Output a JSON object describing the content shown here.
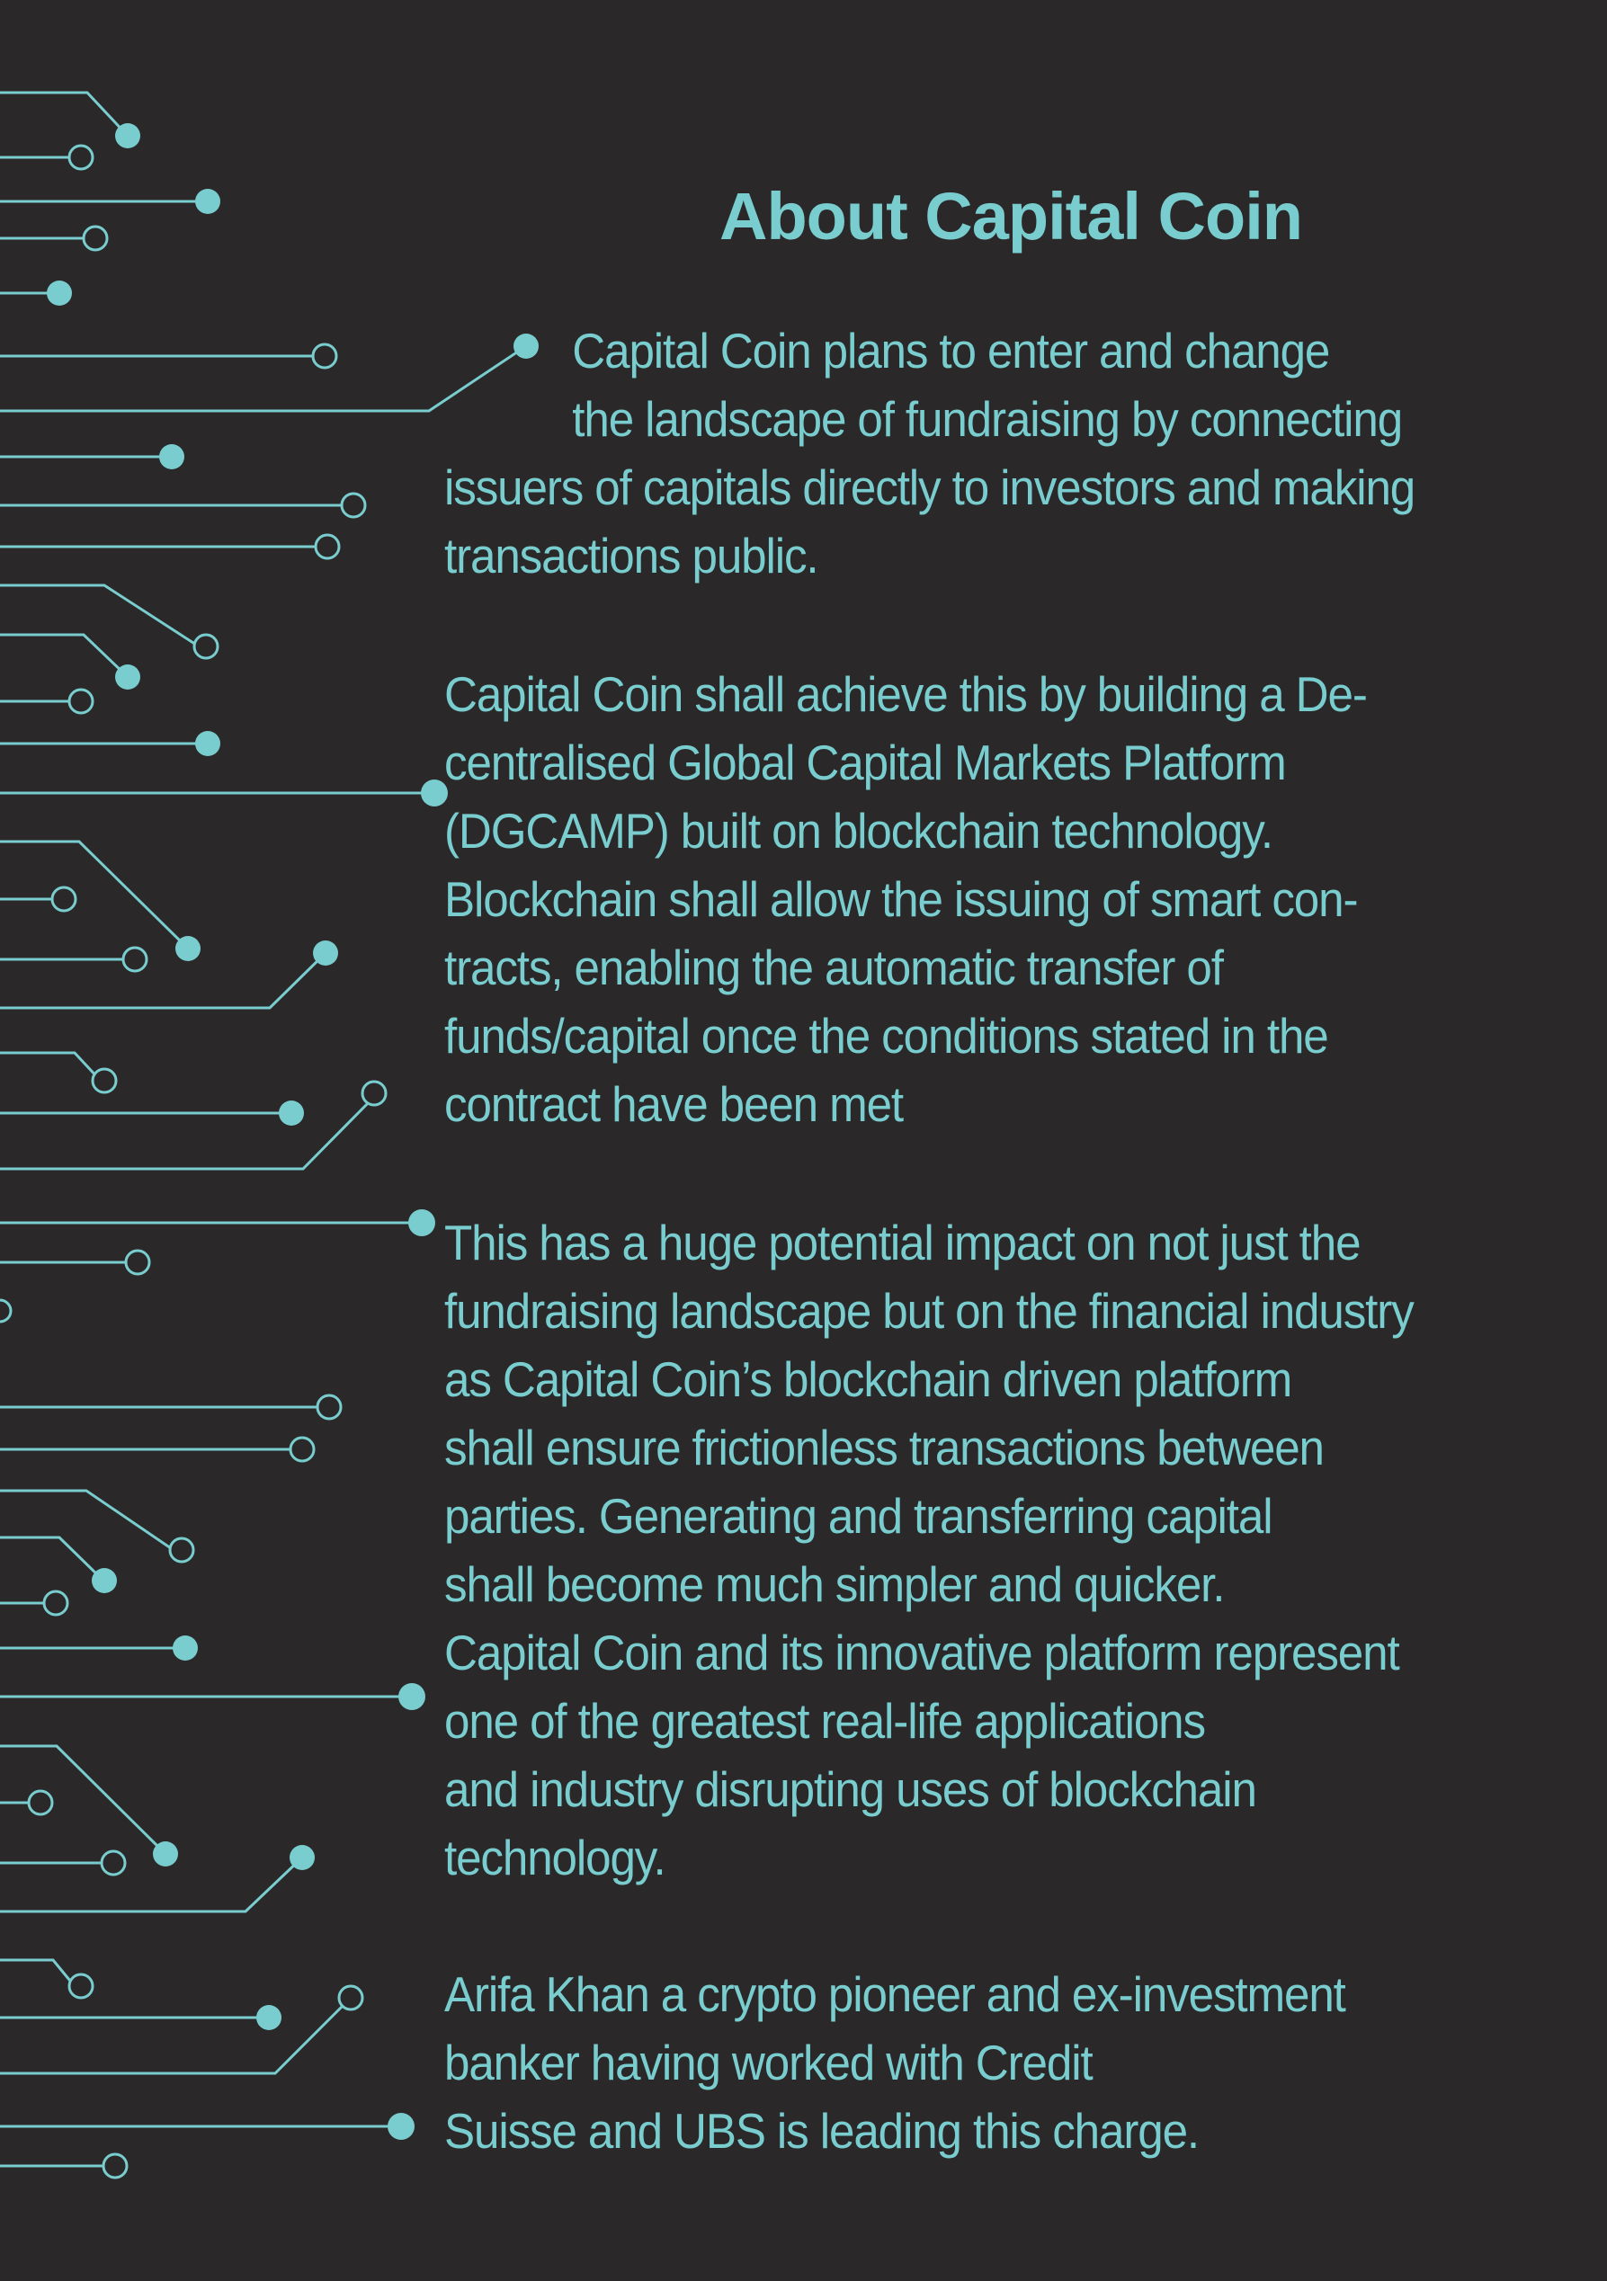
{
  "page": {
    "title": "About Capital Coin",
    "paragraphs": [
      {
        "lines": [
          "Capital Coin plans to enter and change",
          "the landscape of fundraising by connecting",
          "issuers of capitals directly to investors and making",
          "transactions public."
        ]
      },
      {
        "lines": [
          "Capital Coin shall achieve this by building a De-",
          "centralised Global Capital Markets Platform",
          "(DGCAMP) built on blockchain technology.",
          "Blockchain shall allow the issuing of smart con-",
          "tracts, enabling the automatic transfer of",
          "funds/capital once the conditions stated in the",
          "contract have been met"
        ]
      },
      {
        "lines": [
          "This has a huge potential impact on not just the",
          "fundraising landscape but on the financial industry",
          "as Capital Coin’s blockchain driven platform",
          "shall ensure frictionless transactions between",
          "parties. Generating and transferring capital",
          "shall become much simpler and quicker.",
          "Capital Coin and its innovative platform represent",
          "one of the greatest real-life applications",
          "and industry disrupting uses of blockchain",
          "technology."
        ]
      },
      {
        "lines": [
          "Arifa Khan a crypto pioneer and ex-investment",
          "banker having worked with Credit",
          "Suisse and UBS  is leading this charge."
        ]
      }
    ]
  },
  "colors": {
    "background": "#2a2828",
    "accent": "#79cdcf"
  },
  "decoration": {
    "name": "circuit-board-lines"
  }
}
